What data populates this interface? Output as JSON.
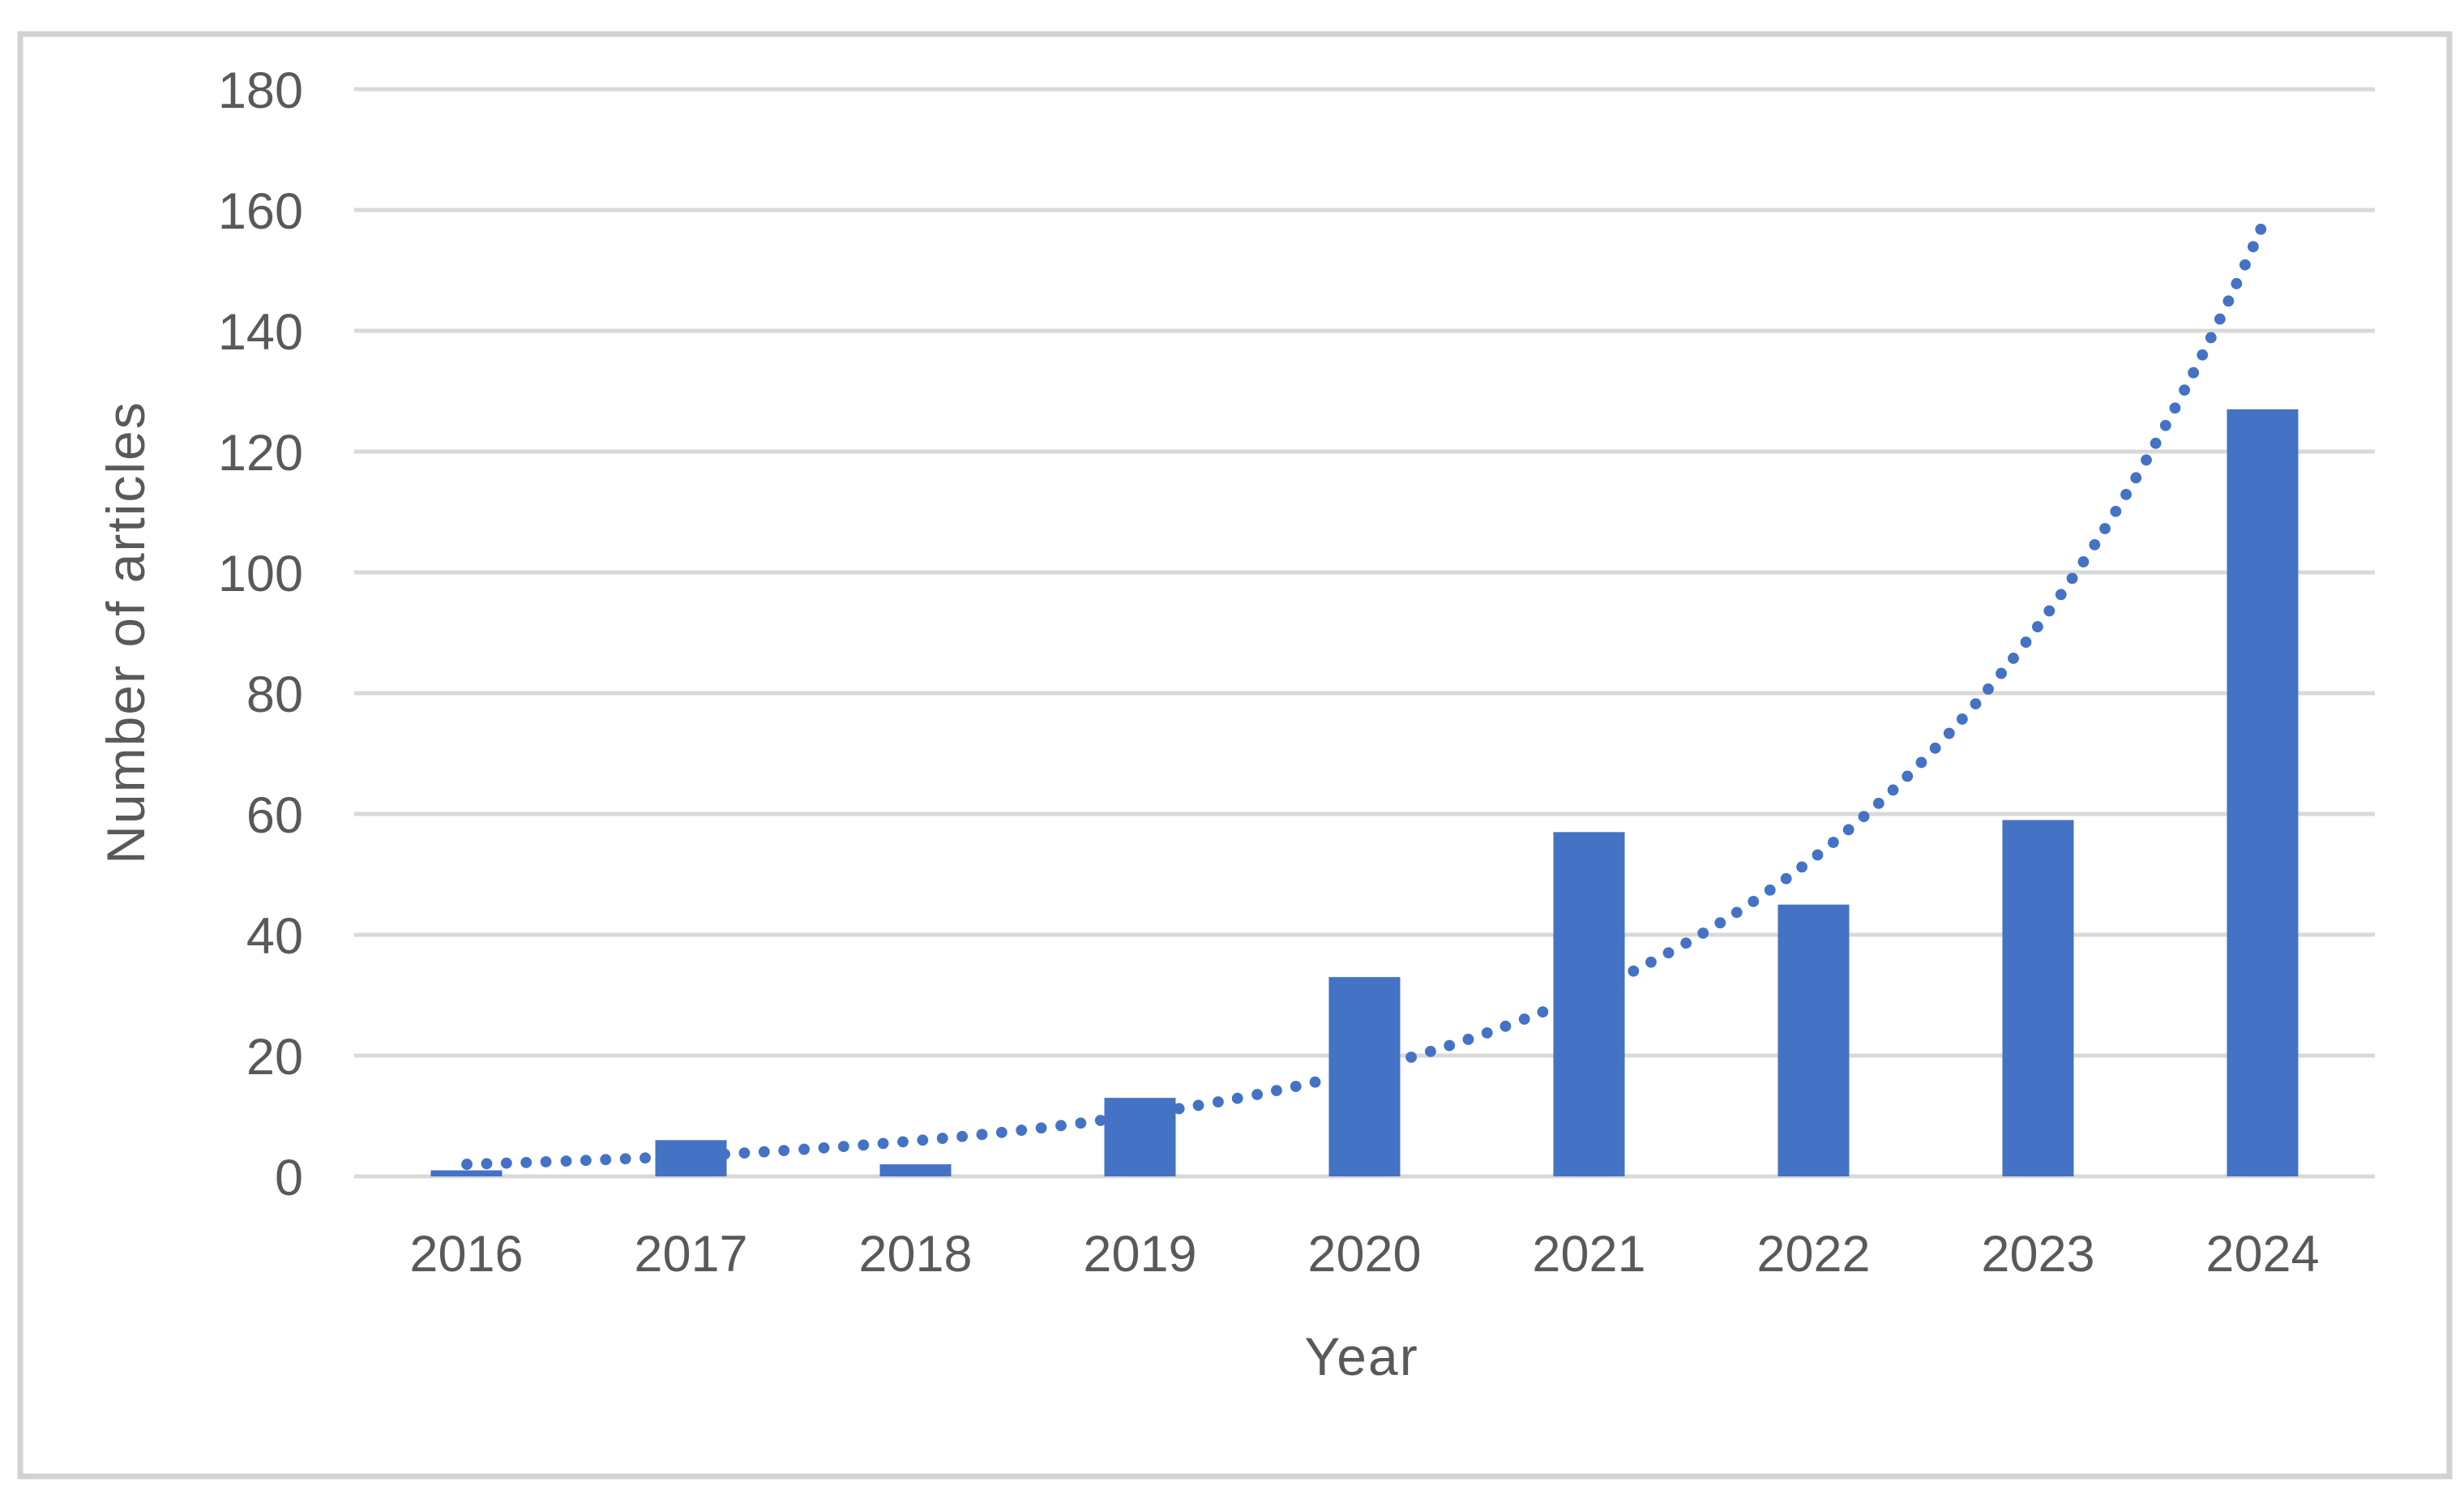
{
  "chart_data": {
    "type": "bar",
    "title": "",
    "categories": [
      "2016",
      "2017",
      "2018",
      "2019",
      "2020",
      "2021",
      "2022",
      "2023",
      "2024"
    ],
    "values": [
      1,
      6,
      2,
      13,
      33,
      57,
      45,
      59,
      127
    ],
    "xlabel": "Year",
    "ylabel": "Number of articles",
    "ylim": [
      0,
      180
    ],
    "yticks": [
      0,
      20,
      40,
      60,
      80,
      100,
      120,
      140,
      160,
      180
    ],
    "grid": "horizontal-only",
    "legend_position": "none",
    "bar_color": "#4472C4",
    "trendline": {
      "type": "exponential",
      "style": "dotted",
      "color": "#4472C4",
      "values_by_category": [
        2,
        3.4,
        5.9,
        10.2,
        17.6,
        30.5,
        52.7,
        91.1,
        157.5
      ]
    }
  },
  "style": {
    "gridline_color": "#D9D9D9",
    "text_color": "#595959",
    "frame_border_color": "#D2D2D2",
    "background_color": "#FFFFFF"
  }
}
